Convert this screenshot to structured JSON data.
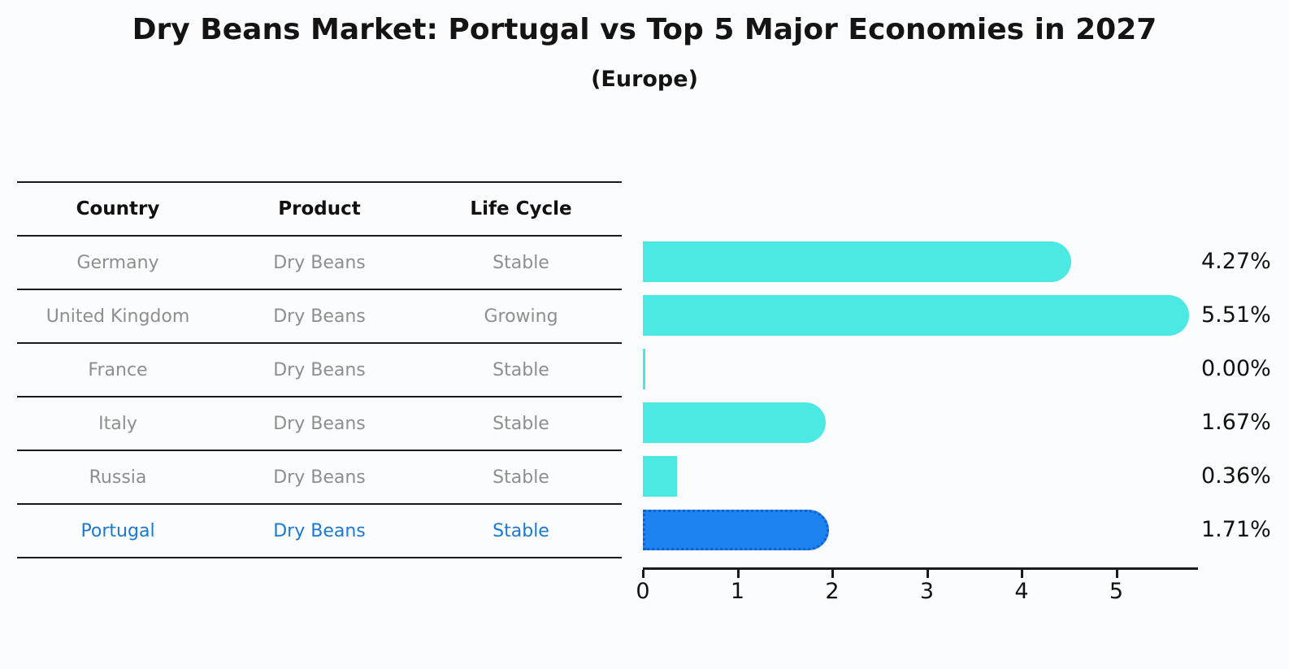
{
  "title": "Dry Beans Market: Portugal vs Top 5 Major Economies in 2027",
  "subtitle": "(Europe)",
  "table": {
    "headers": [
      "Country",
      "Product",
      "Life Cycle"
    ],
    "rows": [
      {
        "country": "Germany",
        "product": "Dry Beans",
        "life_cycle": "Stable",
        "highlighted": false
      },
      {
        "country": "United Kingdom",
        "product": "Dry Beans",
        "life_cycle": "Growing",
        "highlighted": false
      },
      {
        "country": "France",
        "product": "Dry Beans",
        "life_cycle": "Stable",
        "highlighted": false
      },
      {
        "country": "Italy",
        "product": "Dry Beans",
        "life_cycle": "Stable",
        "highlighted": false
      },
      {
        "country": "Russia",
        "product": "Dry Beans",
        "life_cycle": "Stable",
        "highlighted": false
      },
      {
        "country": "Portugal",
        "product": "Dry Beans",
        "life_cycle": "Stable",
        "highlighted": true
      }
    ]
  },
  "chart_data": {
    "type": "bar",
    "orientation": "horizontal",
    "title": "Dry Beans Market: Portugal vs Top 5 Major Economies in 2027",
    "subtitle": "(Europe)",
    "categories": [
      "Germany",
      "United Kingdom",
      "France",
      "Italy",
      "Russia",
      "Portugal"
    ],
    "values": [
      4.27,
      5.51,
      0.0,
      1.67,
      0.36,
      1.71
    ],
    "value_labels": [
      "4.27%",
      "5.51%",
      "0.00%",
      "1.67%",
      "0.36%",
      "1.71%"
    ],
    "x_ticks": [
      0,
      1,
      2,
      3,
      4,
      5
    ],
    "xlim": [
      0,
      5.87
    ],
    "grid": false,
    "legend": false,
    "highlight_index": 5,
    "bar_color": "#4be8e4",
    "highlight_bar_color": "#1d83ee",
    "highlight_border_color": "#135fd0",
    "highlight_text_color": "#1c79d0",
    "axis_color": "#1a1a1a",
    "label_color": "#111111"
  }
}
